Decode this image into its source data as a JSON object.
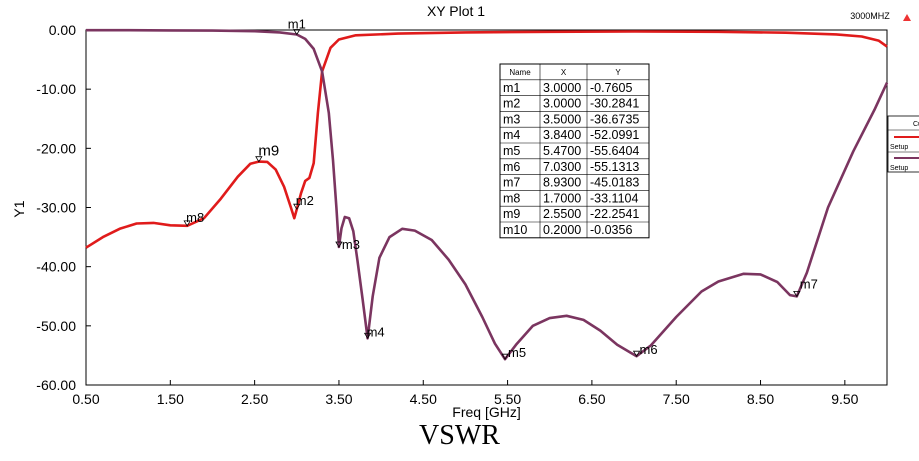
{
  "caption": "VSWR",
  "chart_data": {
    "type": "line",
    "title": "XY Plot 1",
    "corner_label": "3000MHZ",
    "xlabel": "Freq [GHz]",
    "ylabel": "Y1",
    "xlim": [
      0.5,
      10.0
    ],
    "ylim": [
      -60,
      0
    ],
    "x_ticks": [
      "0.50",
      "1.50",
      "2.50",
      "3.50",
      "4.50",
      "5.50",
      "6.50",
      "7.50",
      "8.50",
      "9.50"
    ],
    "x_tick_values": [
      0.5,
      1.5,
      2.5,
      3.5,
      4.5,
      5.5,
      6.5,
      7.5,
      8.5,
      9.5
    ],
    "y_ticks": [
      "0.00",
      "-10.00",
      "-20.00",
      "-30.00",
      "-40.00",
      "-50.00",
      "-60.00"
    ],
    "y_tick_values": [
      0,
      -10,
      -20,
      -30,
      -40,
      -50,
      -60
    ],
    "grid": false,
    "legend_items": [
      "Cu",
      "Setup",
      "Setup"
    ],
    "series": [
      {
        "color": "#e01b1b",
        "points": [
          [
            0.5,
            -36.8
          ],
          [
            0.7,
            -35.0
          ],
          [
            0.9,
            -33.6
          ],
          [
            1.1,
            -32.7
          ],
          [
            1.3,
            -32.6
          ],
          [
            1.5,
            -33.0
          ],
          [
            1.7,
            -33.1
          ],
          [
            1.9,
            -31.8
          ],
          [
            2.1,
            -28.5
          ],
          [
            2.3,
            -24.8
          ],
          [
            2.45,
            -22.6
          ],
          [
            2.55,
            -22.25
          ],
          [
            2.65,
            -22.3
          ],
          [
            2.75,
            -23.6
          ],
          [
            2.85,
            -26.5
          ],
          [
            2.93,
            -30.0
          ],
          [
            2.97,
            -31.8
          ],
          [
            3.0,
            -30.28
          ],
          [
            3.05,
            -27.6
          ],
          [
            3.1,
            -25.5
          ],
          [
            3.15,
            -25.0
          ],
          [
            3.2,
            -22.5
          ],
          [
            3.25,
            -14.0
          ],
          [
            3.3,
            -7.0
          ],
          [
            3.4,
            -3.0
          ],
          [
            3.5,
            -1.6
          ],
          [
            3.7,
            -0.9
          ],
          [
            4.2,
            -0.6
          ],
          [
            5.0,
            -0.4
          ],
          [
            6.0,
            -0.3
          ],
          [
            7.0,
            -0.25
          ],
          [
            8.0,
            -0.3
          ],
          [
            8.8,
            -0.45
          ],
          [
            9.4,
            -0.75
          ],
          [
            9.7,
            -1.1
          ],
          [
            9.9,
            -1.8
          ],
          [
            10.0,
            -2.8
          ]
        ]
      },
      {
        "color": "#7b3560",
        "points": [
          [
            0.5,
            -0.03
          ],
          [
            1.0,
            -0.04
          ],
          [
            1.5,
            -0.06
          ],
          [
            2.0,
            -0.1
          ],
          [
            2.5,
            -0.2
          ],
          [
            2.8,
            -0.4
          ],
          [
            3.0,
            -0.76
          ],
          [
            3.1,
            -1.5
          ],
          [
            3.2,
            -3.2
          ],
          [
            3.3,
            -7.0
          ],
          [
            3.38,
            -14.0
          ],
          [
            3.43,
            -22.0
          ],
          [
            3.47,
            -30.0
          ],
          [
            3.5,
            -36.67
          ],
          [
            3.53,
            -33.5
          ],
          [
            3.57,
            -31.6
          ],
          [
            3.62,
            -31.8
          ],
          [
            3.67,
            -34.0
          ],
          [
            3.72,
            -39.0
          ],
          [
            3.78,
            -45.5
          ],
          [
            3.84,
            -52.1
          ],
          [
            3.9,
            -45.0
          ],
          [
            3.98,
            -38.5
          ],
          [
            4.1,
            -35.0
          ],
          [
            4.25,
            -33.6
          ],
          [
            4.4,
            -33.9
          ],
          [
            4.6,
            -35.5
          ],
          [
            4.8,
            -38.8
          ],
          [
            5.0,
            -43.0
          ],
          [
            5.2,
            -48.5
          ],
          [
            5.35,
            -53.0
          ],
          [
            5.47,
            -55.64
          ],
          [
            5.6,
            -53.2
          ],
          [
            5.8,
            -50.0
          ],
          [
            6.0,
            -48.7
          ],
          [
            6.2,
            -48.3
          ],
          [
            6.4,
            -49.0
          ],
          [
            6.6,
            -50.8
          ],
          [
            6.8,
            -53.2
          ],
          [
            7.03,
            -55.13
          ],
          [
            7.2,
            -53.3
          ],
          [
            7.5,
            -48.5
          ],
          [
            7.8,
            -44.2
          ],
          [
            8.0,
            -42.5
          ],
          [
            8.3,
            -41.2
          ],
          [
            8.5,
            -41.3
          ],
          [
            8.7,
            -42.6
          ],
          [
            8.85,
            -44.8
          ],
          [
            8.93,
            -45.02
          ],
          [
            9.05,
            -41.0
          ],
          [
            9.3,
            -30.0
          ],
          [
            9.6,
            -20.5
          ],
          [
            9.85,
            -13.5
          ],
          [
            10.0,
            -8.9
          ]
        ]
      }
    ],
    "markers": [
      {
        "name": "m1",
        "x": 3.0,
        "y": -0.7605
      },
      {
        "name": "m2",
        "x": 3.0,
        "y": -30.2841
      },
      {
        "name": "m3",
        "x": 3.5,
        "y": -36.6735
      },
      {
        "name": "m4",
        "x": 3.84,
        "y": -52.0991
      },
      {
        "name": "m5",
        "x": 5.47,
        "y": -55.6404
      },
      {
        "name": "m6",
        "x": 7.03,
        "y": -55.1313
      },
      {
        "name": "m7",
        "x": 8.93,
        "y": -45.0183
      },
      {
        "name": "m8",
        "x": 1.7,
        "y": -33.1104
      },
      {
        "name": "m9",
        "x": 2.55,
        "y": -22.2541
      },
      {
        "name": "m10",
        "x": 0.2,
        "y": -0.0356
      }
    ],
    "marker_table": {
      "headers": [
        "Name",
        "X",
        "Y"
      ],
      "rows": [
        [
          "m1",
          "3.0000",
          "-0.7605"
        ],
        [
          "m2",
          "3.0000",
          "-30.2841"
        ],
        [
          "m3",
          "3.5000",
          "-36.6735"
        ],
        [
          "m4",
          "3.8400",
          "-52.0991"
        ],
        [
          "m5",
          "5.4700",
          "-55.6404"
        ],
        [
          "m6",
          "7.0300",
          "-55.1313"
        ],
        [
          "m7",
          "8.9300",
          "-45.0183"
        ],
        [
          "m8",
          "1.7000",
          "-33.1104"
        ],
        [
          "m9",
          "2.5500",
          "-22.2541"
        ],
        [
          "m10",
          "0.2000",
          "-0.0356"
        ]
      ]
    }
  }
}
